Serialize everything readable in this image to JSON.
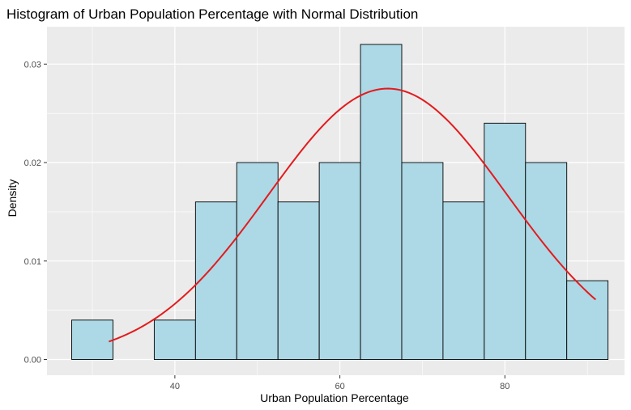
{
  "chart_data": {
    "type": "histogram",
    "title": "Histogram of Urban Population Percentage with Normal Distribution",
    "xlabel": "Urban Population Percentage",
    "ylabel": "Density",
    "xlim": [
      24.5,
      94.5
    ],
    "ylim": [
      -0.0016,
      0.0338
    ],
    "x_ticks": [
      40,
      60,
      80
    ],
    "x_tick_labels": [
      "40",
      "60",
      "80"
    ],
    "y_ticks": [
      0.0,
      0.01,
      0.02,
      0.03
    ],
    "y_tick_labels": [
      "0.00",
      "0.01",
      "0.02",
      "0.03"
    ],
    "grid": true,
    "legend": "none",
    "bins": [
      {
        "x0": 27.5,
        "x1": 32.5,
        "density": 0.004
      },
      {
        "x0": 32.5,
        "x1": 37.5,
        "density": 0.0
      },
      {
        "x0": 37.5,
        "x1": 42.5,
        "density": 0.004
      },
      {
        "x0": 42.5,
        "x1": 47.5,
        "density": 0.016
      },
      {
        "x0": 47.5,
        "x1": 52.5,
        "density": 0.02
      },
      {
        "x0": 52.5,
        "x1": 57.5,
        "density": 0.016
      },
      {
        "x0": 57.5,
        "x1": 62.5,
        "density": 0.02
      },
      {
        "x0": 62.5,
        "x1": 67.5,
        "density": 0.032
      },
      {
        "x0": 67.5,
        "x1": 72.5,
        "density": 0.02
      },
      {
        "x0": 72.5,
        "x1": 77.5,
        "density": 0.016
      },
      {
        "x0": 77.5,
        "x1": 82.5,
        "density": 0.024
      },
      {
        "x0": 82.5,
        "x1": 87.5,
        "density": 0.02
      },
      {
        "x0": 87.5,
        "x1": 92.5,
        "density": 0.008
      }
    ],
    "normal_curve": {
      "mean": 65.8,
      "sd": 14.5,
      "x_range": [
        32,
        91
      ]
    },
    "colors": {
      "bar_fill": "#ADD8E6",
      "bar_stroke": "#000000",
      "curve": "#E41A1C",
      "panel": "#EBEBEB",
      "grid": "#FFFFFF"
    }
  }
}
